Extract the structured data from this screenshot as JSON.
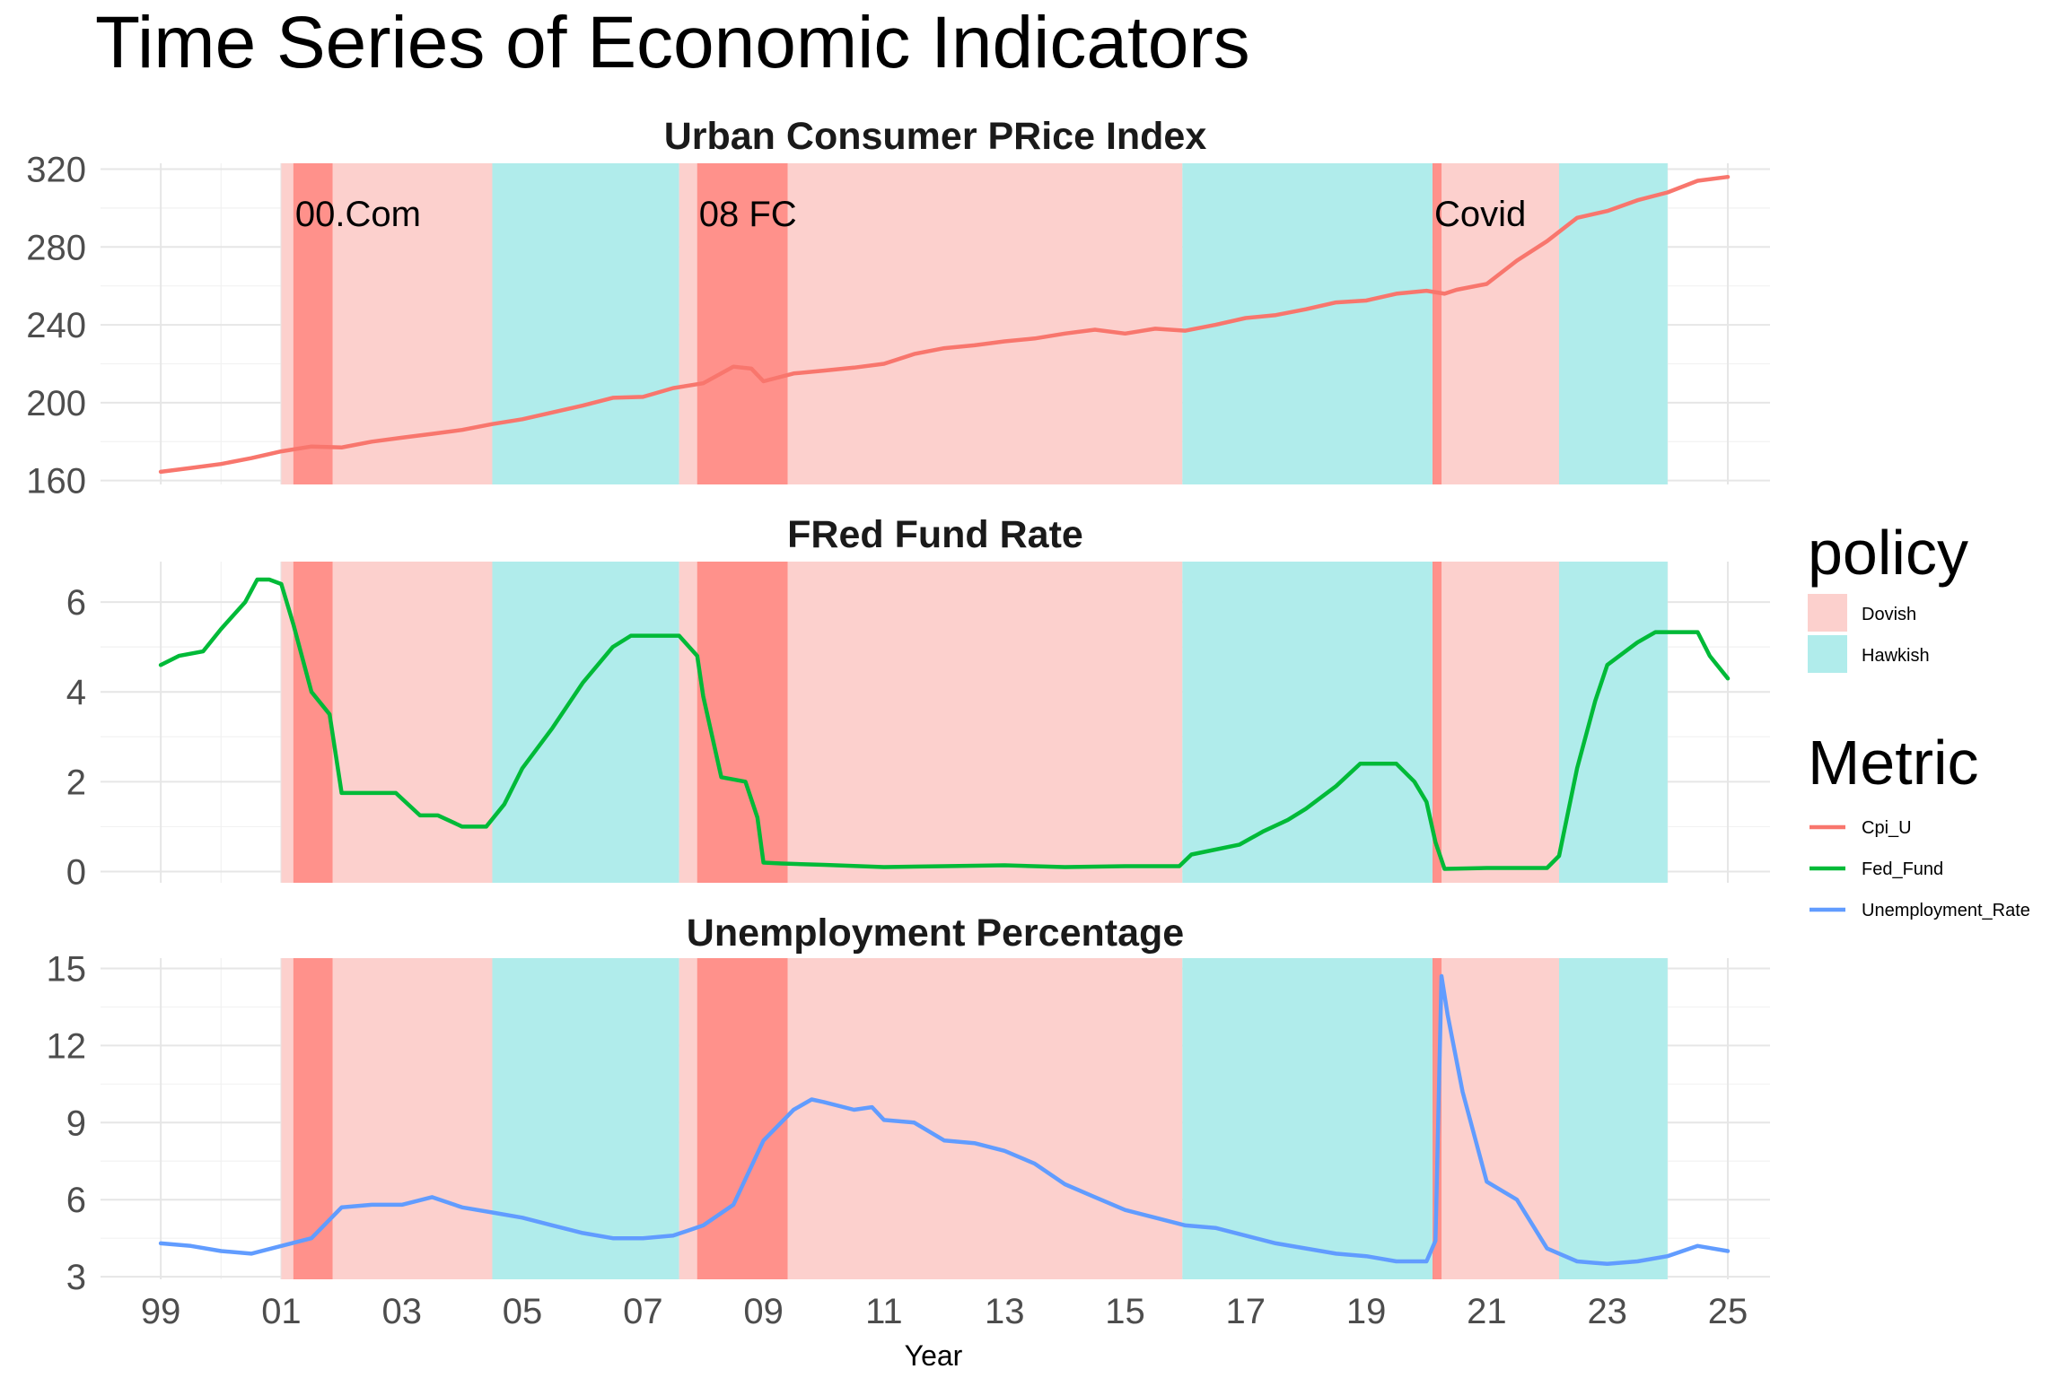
{
  "chart_data": {
    "type": "line",
    "title": "Time Series of Economic Indicators",
    "xlabel": "Year",
    "x_ticks": [
      "99",
      "01",
      "03",
      "05",
      "07",
      "09",
      "11",
      "13",
      "15",
      "17",
      "19",
      "21",
      "23",
      "25"
    ],
    "xlim": [
      1998,
      2025.7
    ],
    "grid": true,
    "facet_layout": "stacked-vertical",
    "legends": {
      "placement": "right",
      "policy": {
        "title": "policy",
        "entries": [
          {
            "label": "Dovish",
            "color": "#fcd0cd"
          },
          {
            "label": "Hawkish",
            "color": "#b0eceb"
          }
        ]
      },
      "metric": {
        "title": "Metric",
        "entries": [
          {
            "label": "Cpi_U",
            "color": "#f8766d"
          },
          {
            "label": "Fed_Fund",
            "color": "#00ba38"
          },
          {
            "label": "Unemployment_Rate",
            "color": "#619cff"
          }
        ]
      }
    },
    "policy_regimes": [
      {
        "policy": "Dovish",
        "start": 2001.0,
        "end": 2004.5
      },
      {
        "policy": "Hawkish",
        "start": 2004.5,
        "end": 2007.6
      },
      {
        "policy": "Dovish",
        "start": 2007.6,
        "end": 2015.95
      },
      {
        "policy": "Hawkish",
        "start": 2015.95,
        "end": 2020.1
      },
      {
        "policy": "Dovish",
        "start": 2020.1,
        "end": 2022.2
      },
      {
        "policy": "Hawkish",
        "start": 2022.2,
        "end": 2024.0
      }
    ],
    "crisis_periods": [
      {
        "label": "00.Com",
        "start": 2001.2,
        "end": 2001.85,
        "color": "#ff918b"
      },
      {
        "label": "08 FC",
        "start": 2007.9,
        "end": 2009.4,
        "color": "#ff918b"
      },
      {
        "label": "Covid",
        "start": 2020.1,
        "end": 2020.25,
        "color": "#ff918b"
      }
    ],
    "panels": [
      {
        "title": "Urban Consumer PRice Index",
        "metric": "Cpi_U",
        "y_ticks": [
          160,
          200,
          240,
          280,
          320
        ],
        "ylim": [
          158,
          323
        ],
        "series": [
          {
            "name": "Cpi_U",
            "color": "#f8766d",
            "x": [
              1999.0,
              1999.5,
              2000.0,
              2000.5,
              2001.0,
              2001.5,
              2002.0,
              2002.5,
              2003.0,
              2003.5,
              2004.0,
              2004.5,
              2005.0,
              2005.5,
              2006.0,
              2006.5,
              2007.0,
              2007.5,
              2008.0,
              2008.5,
              2008.8,
              2009.0,
              2009.5,
              2010.0,
              2010.5,
              2011.0,
              2011.5,
              2012.0,
              2012.5,
              2013.0,
              2013.5,
              2014.0,
              2014.5,
              2015.0,
              2015.5,
              2016.0,
              2016.5,
              2017.0,
              2017.5,
              2018.0,
              2018.5,
              2019.0,
              2019.5,
              2020.0,
              2020.3,
              2020.5,
              2021.0,
              2021.5,
              2022.0,
              2022.5,
              2023.0,
              2023.5,
              2024.0,
              2024.5,
              2025.0
            ],
            "values": [
              164.5,
              166.5,
              168.5,
              171.5,
              175.0,
              177.5,
              177.0,
              180.0,
              182.0,
              184.0,
              186.0,
              189.0,
              191.5,
              195.0,
              198.5,
              202.5,
              203.0,
              207.5,
              210.0,
              218.5,
              217.5,
              211.0,
              215.0,
              216.5,
              218.0,
              220.0,
              225.0,
              228.0,
              229.5,
              231.5,
              233.0,
              235.5,
              237.5,
              235.5,
              238.0,
              237.0,
              240.0,
              243.5,
              245.0,
              248.0,
              251.5,
              252.5,
              256.0,
              257.5,
              256.0,
              258.0,
              261.0,
              273.0,
              283.0,
              295.0,
              298.5,
              304.0,
              308.0,
              314.0,
              316.0
            ]
          }
        ]
      },
      {
        "title": "FRed  Fund Rate",
        "metric": "Fed_Fund",
        "y_ticks": [
          0,
          2,
          4,
          6
        ],
        "ylim": [
          -0.25,
          6.9
        ],
        "series": [
          {
            "name": "Fed_Fund",
            "color": "#00ba38",
            "x": [
              1999.0,
              1999.3,
              1999.7,
              2000.0,
              2000.4,
              2000.6,
              2000.8,
              2001.0,
              2001.2,
              2001.5,
              2001.8,
              2002.0,
              2002.5,
              2002.9,
              2003.3,
              2003.6,
              2004.0,
              2004.4,
              2004.7,
              2005.0,
              2005.5,
              2006.0,
              2006.5,
              2006.8,
              2007.0,
              2007.3,
              2007.6,
              2007.9,
              2008.0,
              2008.3,
              2008.7,
              2008.9,
              2009.0,
              2009.3,
              2010.0,
              2011.0,
              2012.0,
              2013.0,
              2014.0,
              2015.0,
              2015.9,
              2016.1,
              2016.9,
              2017.3,
              2017.7,
              2018.0,
              2018.5,
              2018.9,
              2019.2,
              2019.5,
              2019.8,
              2020.0,
              2020.15,
              2020.3,
              2021.0,
              2022.0,
              2022.2,
              2022.5,
              2022.8,
              2023.0,
              2023.5,
              2023.8,
              2024.0,
              2024.5,
              2024.7,
              2025.0
            ],
            "values": [
              4.6,
              4.8,
              4.9,
              5.4,
              6.0,
              6.5,
              6.5,
              6.4,
              5.5,
              4.0,
              3.5,
              1.75,
              1.75,
              1.75,
              1.25,
              1.25,
              1.0,
              1.0,
              1.5,
              2.3,
              3.2,
              4.2,
              5.0,
              5.25,
              5.25,
              5.25,
              5.25,
              4.8,
              3.9,
              2.1,
              2.0,
              1.2,
              0.2,
              0.18,
              0.15,
              0.1,
              0.12,
              0.14,
              0.1,
              0.12,
              0.12,
              0.38,
              0.6,
              0.9,
              1.15,
              1.4,
              1.9,
              2.4,
              2.4,
              2.4,
              2.0,
              1.55,
              0.65,
              0.06,
              0.08,
              0.08,
              0.35,
              2.3,
              3.8,
              4.6,
              5.1,
              5.33,
              5.33,
              5.33,
              4.8,
              4.3
            ]
          }
        ]
      },
      {
        "title": "Unemployment Percentage",
        "metric": "Unemployment_Rate",
        "y_ticks": [
          3,
          6,
          9,
          12,
          15
        ],
        "ylim": [
          2.9,
          15.4
        ],
        "series": [
          {
            "name": "Unemployment_Rate",
            "color": "#619cff",
            "x": [
              1999.0,
              1999.5,
              2000.0,
              2000.5,
              2001.0,
              2001.5,
              2002.0,
              2002.5,
              2003.0,
              2003.5,
              2004.0,
              2004.5,
              2005.0,
              2005.5,
              2006.0,
              2006.5,
              2007.0,
              2007.5,
              2008.0,
              2008.5,
              2009.0,
              2009.5,
              2009.8,
              2010.0,
              2010.5,
              2010.8,
              2011.0,
              2011.5,
              2012.0,
              2012.5,
              2013.0,
              2013.5,
              2014.0,
              2014.5,
              2015.0,
              2015.5,
              2016.0,
              2016.5,
              2017.0,
              2017.5,
              2018.0,
              2018.5,
              2019.0,
              2019.5,
              2020.0,
              2020.15,
              2020.25,
              2020.35,
              2020.6,
              2021.0,
              2021.5,
              2022.0,
              2022.5,
              2023.0,
              2023.5,
              2024.0,
              2024.5,
              2025.0
            ],
            "values": [
              4.3,
              4.2,
              4.0,
              3.9,
              4.2,
              4.5,
              5.7,
              5.8,
              5.8,
              6.1,
              5.7,
              5.5,
              5.3,
              5.0,
              4.7,
              4.5,
              4.5,
              4.6,
              5.0,
              5.8,
              8.3,
              9.5,
              9.9,
              9.8,
              9.5,
              9.6,
              9.1,
              9.0,
              8.3,
              8.2,
              7.9,
              7.4,
              6.6,
              6.1,
              5.6,
              5.3,
              5.0,
              4.9,
              4.6,
              4.3,
              4.1,
              3.9,
              3.8,
              3.6,
              3.6,
              4.4,
              14.7,
              13.2,
              10.2,
              6.7,
              6.0,
              4.1,
              3.6,
              3.5,
              3.6,
              3.8,
              4.2,
              4.0
            ]
          }
        ]
      }
    ]
  }
}
